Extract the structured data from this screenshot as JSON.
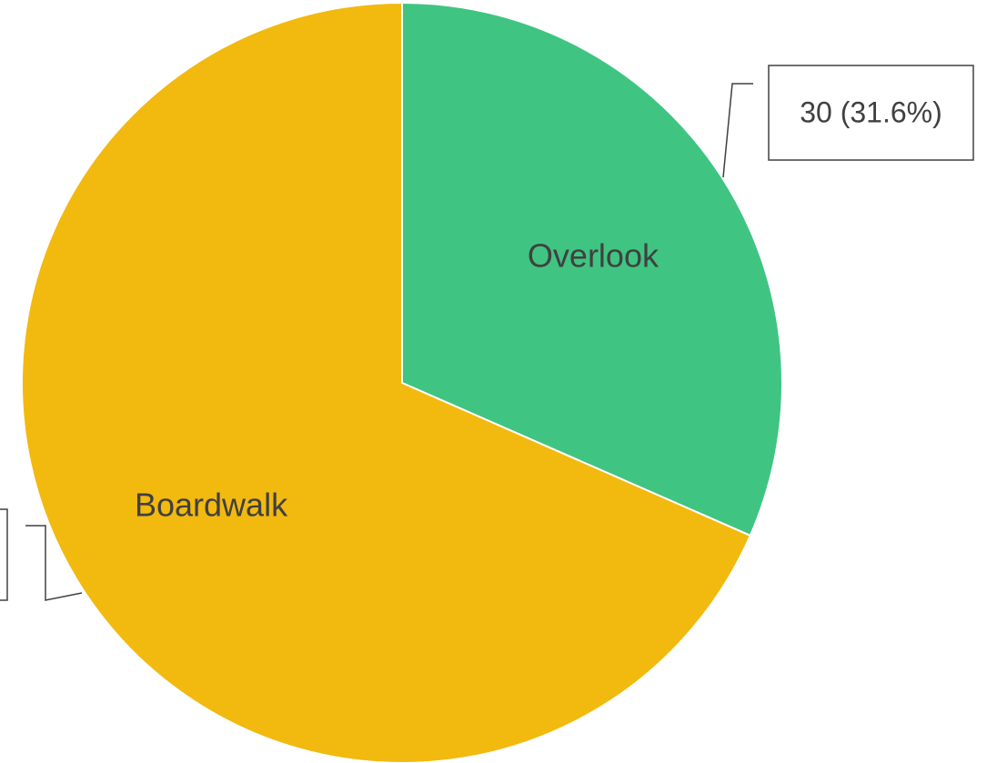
{
  "chart_data": {
    "type": "pie",
    "categories": [
      "Overlook",
      "Boardwalk"
    ],
    "values": [
      30,
      65
    ],
    "value_labels": [
      "30 (31.6%)",
      null
    ],
    "colors": [
      "#40c482",
      "#f2b90f"
    ]
  }
}
